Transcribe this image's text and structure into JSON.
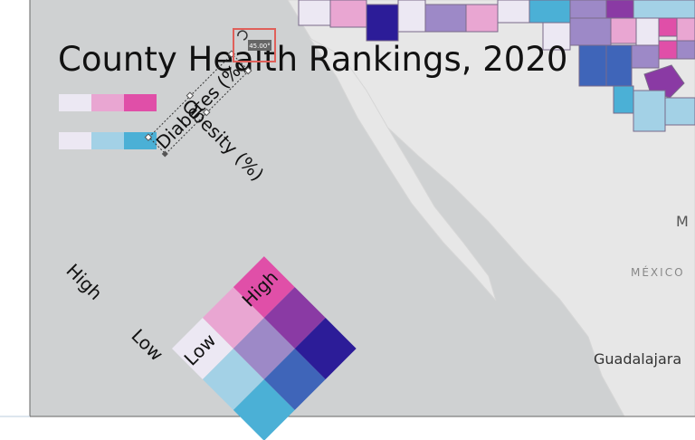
{
  "title": "County Health Rankings, 2020",
  "legend": {
    "diabetes_label": "Diabetes (%)",
    "obesity_label": "Obesity (%)",
    "high_left": "High",
    "low_left": "Low",
    "low_right": "Low",
    "high_right": "High"
  },
  "map_labels": {
    "partial_city": "M",
    "country": "MÉXICO",
    "city": "Guadalajara"
  },
  "rotation_readout": "45.00°"
}
